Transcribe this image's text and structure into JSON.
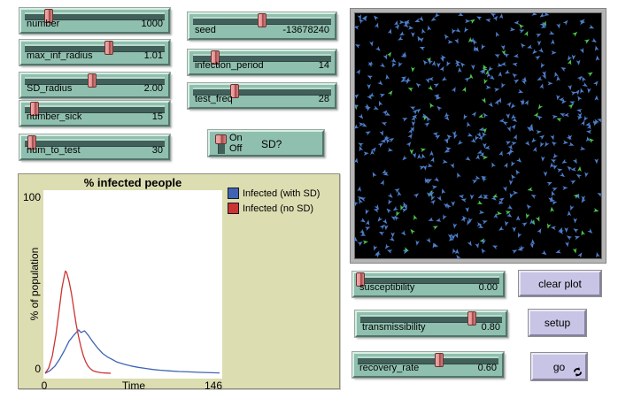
{
  "colors": {
    "widget_teal": "#8fbfae",
    "groove_dark": "#42605a",
    "handle_red": "#e59595",
    "button_lavender": "#c7c4e5",
    "plot_background": "#dcddb1",
    "world_background": "#000000"
  },
  "sliders": {
    "number": {
      "label": "number",
      "value": "1000",
      "fraction": 0.17
    },
    "max_inf_radius": {
      "label": "max_inf_radius",
      "value": "1.01",
      "fraction": 0.6
    },
    "sd_radius": {
      "label": "SD_radius",
      "value": "2.00",
      "fraction": 0.48
    },
    "number_sick": {
      "label": "number_sick",
      "value": "15",
      "fraction": 0.07
    },
    "num_to_test": {
      "label": "num_to_test",
      "value": "30",
      "fraction": 0.05
    },
    "seed": {
      "label": "seed",
      "value": "-13678240",
      "fraction": 0.5
    },
    "infection_period": {
      "label": "infection_period",
      "value": "14",
      "fraction": 0.16
    },
    "test_freq": {
      "label": "test_freq",
      "value": "28",
      "fraction": 0.3
    },
    "susceptibility": {
      "label": "susceptibility",
      "value": "0.00",
      "fraction": 0.02
    },
    "transmissibility": {
      "label": "transmissibility",
      "value": "0.80",
      "fraction": 0.79
    },
    "recovery_rate": {
      "label": "recovery_rate",
      "value": "0.60",
      "fraction": 0.58
    }
  },
  "switch": {
    "label": "SD?",
    "on": "On",
    "off": "Off",
    "state": "On"
  },
  "buttons": {
    "clear_plot": "clear plot",
    "setup": "setup",
    "go": "go"
  },
  "plot": {
    "title": "% infected people",
    "y_axis_label": "% of population",
    "x_axis_label": "Time",
    "y_max": "100",
    "y_min": "0",
    "x_min": "0",
    "x_max": "146",
    "legend": [
      {
        "label": "Infected (with SD)",
        "color": "#3f64b5"
      },
      {
        "label": "Infected (no SD)",
        "color": "#cc3433"
      }
    ]
  },
  "chart_data": {
    "type": "line",
    "title": "% infected people",
    "xlabel": "Time",
    "ylabel": "% of population",
    "xlim": [
      0,
      146
    ],
    "ylim": [
      0,
      100
    ],
    "grid": false,
    "legend_position": "top-right",
    "series": [
      {
        "name": "Infected (with SD)",
        "color": "#3f64b5",
        "points": [
          [
            0,
            0
          ],
          [
            4,
            1.5
          ],
          [
            8,
            4
          ],
          [
            12,
            8
          ],
          [
            16,
            13
          ],
          [
            20,
            18.5
          ],
          [
            24,
            22
          ],
          [
            26,
            23.5
          ],
          [
            28,
            25
          ],
          [
            30,
            23.5
          ],
          [
            33,
            24.5
          ],
          [
            36,
            22
          ],
          [
            40,
            18
          ],
          [
            44,
            14.5
          ],
          [
            48,
            11.5
          ],
          [
            52,
            9.5
          ],
          [
            56,
            8
          ],
          [
            60,
            6.5
          ],
          [
            66,
            5.2
          ],
          [
            72,
            4.2
          ],
          [
            78,
            3.4
          ],
          [
            84,
            2.8
          ],
          [
            90,
            2.2
          ],
          [
            96,
            1.8
          ],
          [
            104,
            1.4
          ],
          [
            112,
            1.0
          ],
          [
            120,
            0.8
          ],
          [
            130,
            0.5
          ],
          [
            140,
            0.3
          ],
          [
            146,
            0.2
          ]
        ]
      },
      {
        "name": "Infected (no SD)",
        "color": "#cc3433",
        "points": [
          [
            0,
            0
          ],
          [
            3,
            3
          ],
          [
            6,
            10
          ],
          [
            9,
            22
          ],
          [
            12,
            38
          ],
          [
            14,
            49
          ],
          [
            16,
            56
          ],
          [
            17,
            59
          ],
          [
            18,
            58
          ],
          [
            20,
            53
          ],
          [
            22,
            46
          ],
          [
            24,
            37
          ],
          [
            26,
            28
          ],
          [
            28,
            21
          ],
          [
            30,
            15
          ],
          [
            32,
            10
          ],
          [
            34,
            6.5
          ],
          [
            36,
            4
          ],
          [
            38,
            2.5
          ],
          [
            40,
            1.5
          ],
          [
            43,
            0.8
          ],
          [
            47,
            0.3
          ],
          [
            52,
            0.1
          ],
          [
            55,
            0
          ]
        ]
      }
    ]
  },
  "world": {
    "background": "#000000",
    "turtles": {
      "blue_count": 480,
      "green_count": 62,
      "blue_color": "#4d7dc9",
      "green_color": "#4fc44f"
    },
    "seed": 20
  }
}
